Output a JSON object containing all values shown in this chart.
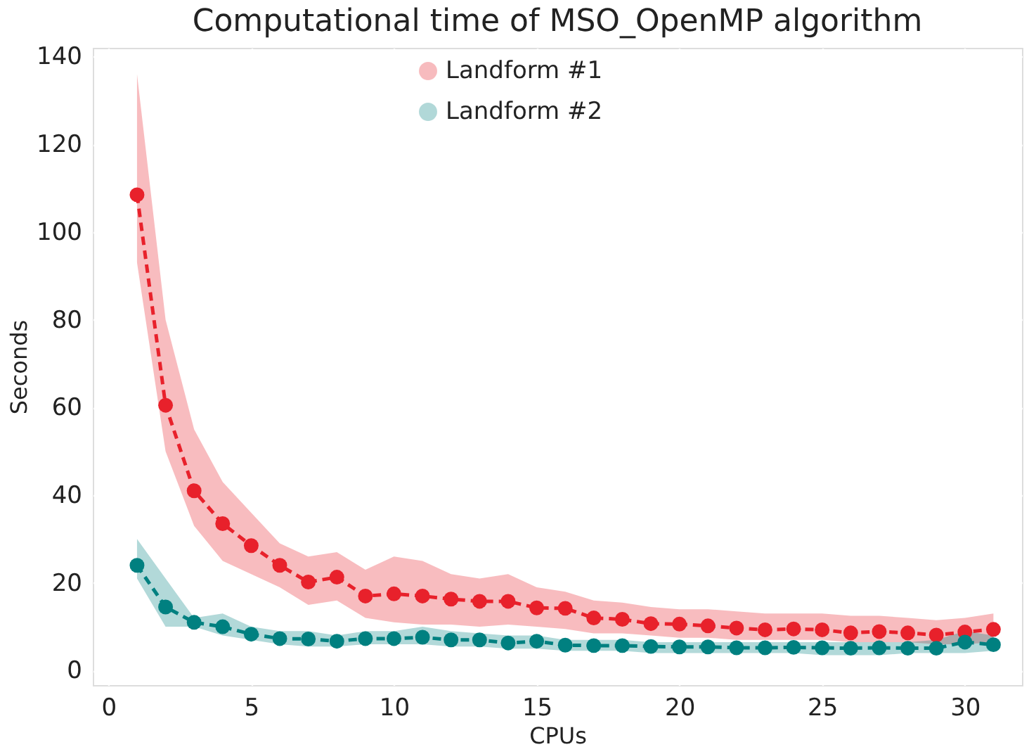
{
  "chart_data": {
    "type": "line",
    "title": "Computational time of MSO_OpenMP algorithm",
    "xlabel": "CPUs",
    "ylabel": "Seconds",
    "x": [
      1,
      2,
      3,
      4,
      5,
      6,
      7,
      8,
      9,
      10,
      11,
      12,
      13,
      14,
      15,
      16,
      17,
      18,
      19,
      20,
      21,
      22,
      23,
      24,
      25,
      26,
      27,
      28,
      29,
      30,
      31
    ],
    "series": [
      {
        "name": "Landform #1",
        "color": "#e8212b",
        "values": [
          108.5,
          60.5,
          41,
          33.5,
          28.5,
          24,
          20.2,
          21.3,
          17,
          17.5,
          17,
          16.3,
          15.8,
          15.8,
          14.3,
          14.2,
          12,
          11.7,
          10.7,
          10.6,
          10.2,
          9.7,
          9.3,
          9.5,
          9.3,
          8.6,
          8.9,
          8.6,
          8.1,
          8.8,
          9.4
        ],
        "lower": [
          93,
          50,
          33,
          25,
          22,
          19,
          15,
          16,
          12,
          11,
          10.5,
          10.5,
          10,
          10.5,
          10,
          9.5,
          8.5,
          8.5,
          8,
          7.5,
          7.5,
          7,
          7,
          7,
          7,
          6.5,
          6.5,
          6.5,
          6,
          6,
          6.5
        ],
        "upper": [
          136,
          80,
          55,
          43,
          36,
          29,
          26,
          27,
          23,
          26,
          25,
          22,
          21,
          22,
          19,
          18,
          16,
          15.5,
          14.5,
          14,
          14,
          13.5,
          13,
          13,
          13,
          12.5,
          12.5,
          12,
          11.5,
          12,
          13
        ]
      },
      {
        "name": "Landform #2",
        "color": "#008080",
        "values": [
          24,
          14.5,
          11,
          10,
          8.3,
          7.3,
          7.2,
          6.7,
          7.3,
          7.3,
          7.6,
          7,
          7,
          6.3,
          6.7,
          5.8,
          5.7,
          5.7,
          5.5,
          5.4,
          5.4,
          5.2,
          5.2,
          5.3,
          5.2,
          5.1,
          5.2,
          5.1,
          5.1,
          6.5,
          5.9
        ],
        "lower": [
          21,
          10,
          10,
          8,
          7,
          6,
          5.5,
          5.5,
          6,
          6,
          6,
          5.5,
          5.5,
          5,
          5,
          4.5,
          4.5,
          4.5,
          4,
          4,
          4,
          4,
          4,
          4,
          3.5,
          3.5,
          3.5,
          4,
          4,
          4,
          4.5
        ],
        "upper": [
          30,
          21,
          12,
          13,
          10,
          9,
          9,
          8,
          9,
          9,
          10,
          9,
          8.5,
          8,
          8,
          7,
          7,
          7,
          6.5,
          6.5,
          6.5,
          6.5,
          6.5,
          6.5,
          6.5,
          6.5,
          6.5,
          6.5,
          7,
          9,
          8
        ]
      }
    ],
    "xlim": [
      -0.55,
      32
    ],
    "ylim": [
      -3.3,
      142
    ],
    "xticks": [
      0,
      5,
      10,
      15,
      20,
      25,
      30
    ],
    "yticks": [
      0,
      20,
      40,
      60,
      80,
      100,
      120,
      140
    ],
    "grid": true,
    "legend": "top",
    "marker": "circle",
    "line_style": "dashed"
  }
}
